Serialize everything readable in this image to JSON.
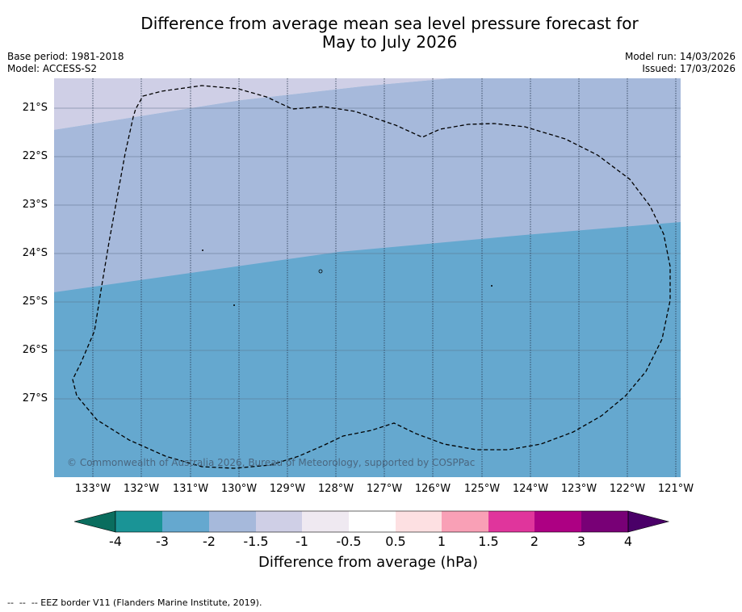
{
  "title": {
    "line1": "Difference from average mean sea level pressure forecast for",
    "line2": "May to July 2026"
  },
  "meta": {
    "base_period": "Base period: 1981-2018",
    "model": "Model: ACCESS-S2",
    "model_run": "Model run: 14/03/2026",
    "issued": "Issued: 17/03/2026"
  },
  "map": {
    "copyright": "© Commonwealth of Australia 2026, Bureau of Meteorology, supported by COSPPac",
    "lat_labels": [
      "21°S",
      "22°S",
      "23°S",
      "24°S",
      "25°S",
      "26°S",
      "27°S"
    ],
    "lon_labels": [
      "133°W",
      "132°W",
      "131°W",
      "130°W",
      "129°W",
      "128°W",
      "127°W",
      "126°W",
      "125°W",
      "124°W",
      "123°W",
      "122°W",
      "121°W"
    ],
    "shading": [
      {
        "range": "-1.5 to -1",
        "color": "#cfcfe6"
      },
      {
        "range": "-2 to -1.5",
        "color": "#a6b9db"
      },
      {
        "range": "-3 to -2",
        "color": "#65a8cf"
      }
    ],
    "border_style": "dashed",
    "border_color": "#000000"
  },
  "colorbar": {
    "ticks": [
      "-4",
      "-3",
      "-2",
      "-1.5",
      "-1",
      "-0.5",
      "0.5",
      "1",
      "1.5",
      "2",
      "3",
      "4"
    ],
    "colors": [
      "#1a9496",
      "#65a8cf",
      "#a6b9db",
      "#cfcfe6",
      "#efe9f1",
      "#ffffff",
      "#fde0e2",
      "#f9a0b6",
      "#e0359c",
      "#ad0083",
      "#780076"
    ],
    "under_color": "#0a6d5e",
    "over_color": "#4a0068",
    "label": "Difference from average (hPa)"
  },
  "footnote": "--  --  -- EEZ border V11 (Flanders Marine Institute, 2019)."
}
